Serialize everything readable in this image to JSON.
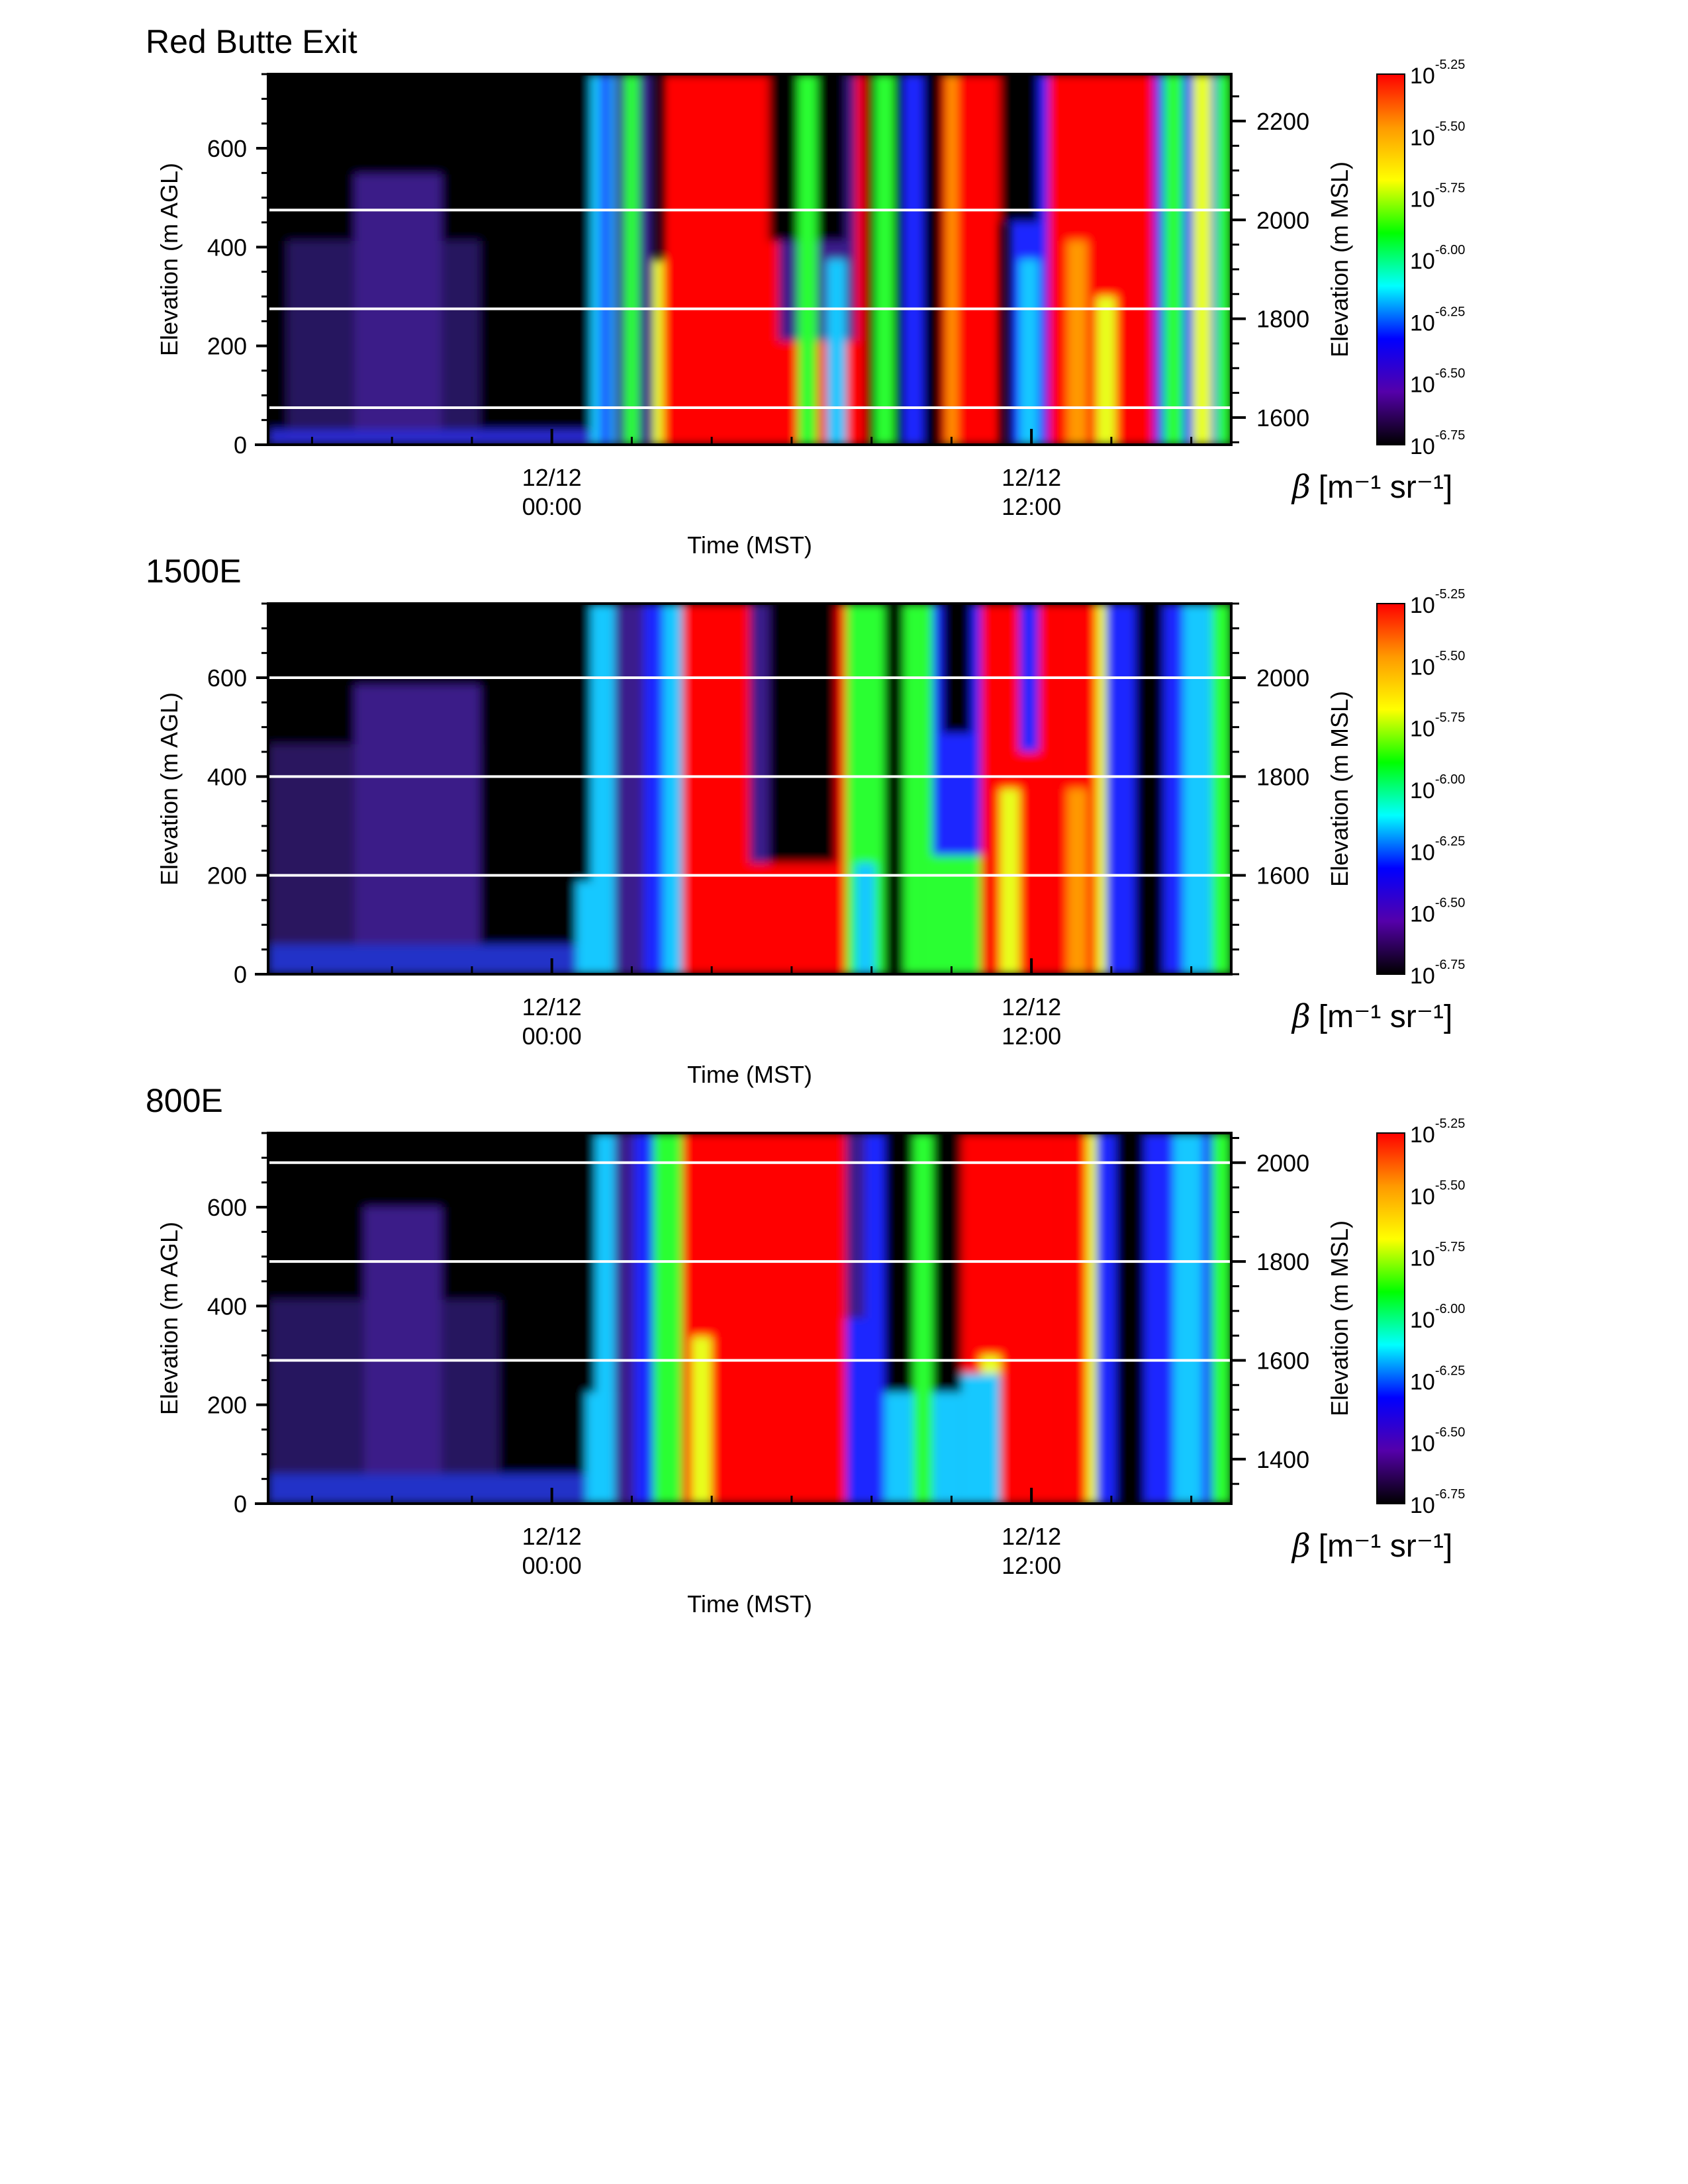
{
  "chart_data": [
    {
      "type": "heatmap",
      "title": "Red Butte Exit",
      "xlabel": "Time (MST)",
      "ylabel": "Elevation (m AGL)",
      "y2label": "Elevation (m MSL)",
      "x_ticks": [
        {
          "line1": "12/12",
          "line2": "00:00",
          "hour": 0
        },
        {
          "line1": "12/12",
          "line2": "12:00",
          "hour": 12
        }
      ],
      "y_ticks": [
        "0",
        "200",
        "400",
        "600"
      ],
      "y_tick_values": [
        0,
        200,
        400,
        600
      ],
      "ylim": [
        0,
        750
      ],
      "y2_ticks": [
        "1600",
        "1800",
        "2000",
        "2200"
      ],
      "y2_tick_values": [
        1600,
        1800,
        2000,
        2200
      ],
      "y2lim": [
        1545,
        2295
      ],
      "xlim_hours": [
        -7.1,
        17
      ],
      "terrain_lines_m_agl": [
        75,
        275,
        475
      ],
      "colorbar": {
        "label_symbol": "β",
        "label_units": "[m⁻¹ sr⁻¹]",
        "tick_base": "10",
        "tick_exponents": [
          "-5.25",
          "-5.50",
          "-5.75",
          "-6.00",
          "-6.25",
          "-6.50",
          "-6.75"
        ],
        "colors": [
          "#ff0000",
          "#ff9900",
          "#ffff00",
          "#00ff00",
          "#00ffff",
          "#0000ff",
          "#5500aa",
          "#000000"
        ]
      }
    },
    {
      "type": "heatmap",
      "title": "1500E",
      "xlabel": "Time (MST)",
      "ylabel": "Elevation (m AGL)",
      "y2label": "Elevation (m MSL)",
      "x_ticks": [
        {
          "line1": "12/12",
          "line2": "00:00",
          "hour": 0
        },
        {
          "line1": "12/12",
          "line2": "12:00",
          "hour": 12
        }
      ],
      "y_ticks": [
        "0",
        "200",
        "400",
        "600"
      ],
      "y_tick_values": [
        0,
        200,
        400,
        600
      ],
      "ylim": [
        0,
        750
      ],
      "y2_ticks": [
        "1600",
        "1800",
        "2000"
      ],
      "y2_tick_values": [
        1600,
        1800,
        2000
      ],
      "y2lim": [
        1400,
        2150
      ],
      "xlim_hours": [
        -7.1,
        17
      ],
      "terrain_lines_m_agl": [
        200,
        400,
        600
      ],
      "colorbar": {
        "label_symbol": "β",
        "label_units": "[m⁻¹ sr⁻¹]",
        "tick_base": "10",
        "tick_exponents": [
          "-5.25",
          "-5.50",
          "-5.75",
          "-6.00",
          "-6.25",
          "-6.50",
          "-6.75"
        ],
        "colors": [
          "#ff0000",
          "#ff9900",
          "#ffff00",
          "#00ff00",
          "#00ffff",
          "#0000ff",
          "#5500aa",
          "#000000"
        ]
      }
    },
    {
      "type": "heatmap",
      "title": "800E",
      "xlabel": "Time (MST)",
      "ylabel": "Elevation (m AGL)",
      "y2label": "Elevation (m MSL)",
      "x_ticks": [
        {
          "line1": "12/12",
          "line2": "00:00",
          "hour": 0
        },
        {
          "line1": "12/12",
          "line2": "12:00",
          "hour": 12
        }
      ],
      "y_ticks": [
        "0",
        "200",
        "400",
        "600"
      ],
      "y_tick_values": [
        0,
        200,
        400,
        600
      ],
      "ylim": [
        0,
        750
      ],
      "y2_ticks": [
        "1400",
        "1600",
        "1800",
        "2000"
      ],
      "y2_tick_values": [
        1400,
        1600,
        1800,
        2000
      ],
      "y2lim": [
        1310,
        2060
      ],
      "xlim_hours": [
        -7.1,
        17
      ],
      "terrain_lines_m_agl": [
        290,
        490,
        690
      ],
      "colorbar": {
        "label_symbol": "β",
        "label_units": "[m⁻¹ sr⁻¹]",
        "tick_base": "10",
        "tick_exponents": [
          "-5.25",
          "-5.50",
          "-5.75",
          "-6.00",
          "-6.25",
          "-6.50",
          "-6.75"
        ],
        "colors": [
          "#ff0000",
          "#ff9900",
          "#ffff00",
          "#00ff00",
          "#00ffff",
          "#0000ff",
          "#5500aa",
          "#000000"
        ]
      }
    }
  ]
}
